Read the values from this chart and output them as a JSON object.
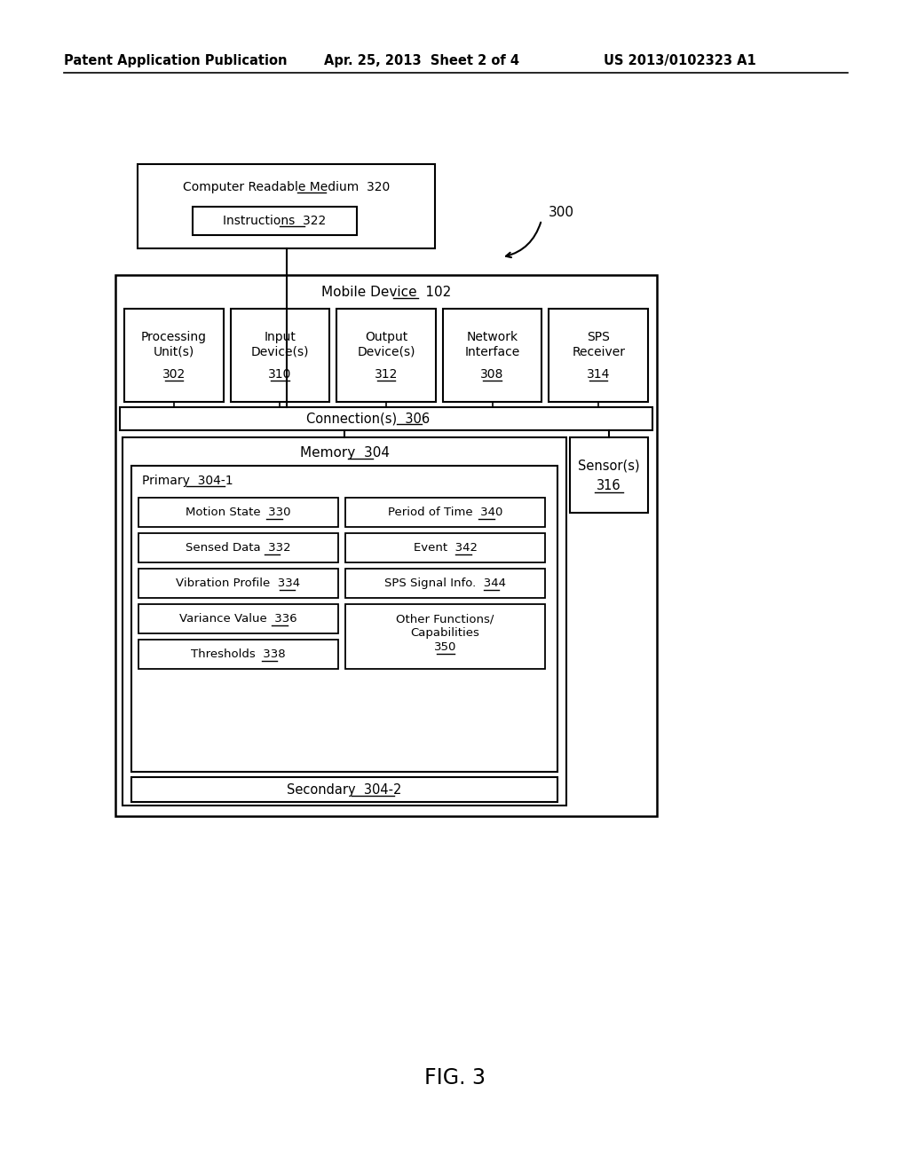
{
  "bg_color": "#ffffff",
  "header_left": "Patent Application Publication",
  "header_mid": "Apr. 25, 2013  Sheet 2 of 4",
  "header_right": "US 2013/0102323 A1",
  "fig_label": "FIG. 3",
  "ref_300": "300",
  "crm_label": "Computer Readable Medium",
  "crm_num": "320",
  "instr_label": "Instructions",
  "instr_num": "322",
  "md_label": "Mobile Device",
  "md_num": "102",
  "conn_label": "Connection(s)",
  "conn_num": "306",
  "mem_label": "Memory",
  "mem_num": "304",
  "primary_label": "Primary",
  "primary_num": "304-1",
  "secondary_label": "Secondary",
  "secondary_num": "304-2",
  "sensor_label": "Sensor(s)",
  "sensor_num": "316",
  "pu_label": "Processing\nUnit(s)",
  "pu_num": "302",
  "id_label": "Input\nDevice(s)",
  "id_num": "310",
  "od_label": "Output\nDevice(s)",
  "od_num": "312",
  "ni_label": "Network\nInterface",
  "ni_num": "308",
  "sps_label": "SPS\nReceiver",
  "sps_num": "314",
  "ms_label": "Motion State",
  "ms_num": "330",
  "sd_label": "Sensed Data",
  "sd_num": "332",
  "vp_label": "Vibration Profile",
  "vp_num": "334",
  "vv_label": "Variance Value",
  "vv_num": "336",
  "th_label": "Thresholds",
  "th_num": "338",
  "pt_label": "Period of Time",
  "pt_num": "340",
  "ev_label": "Event",
  "ev_num": "342",
  "sps_sig_label": "SPS Signal Info.",
  "sps_sig_num": "344",
  "of_label": "Other Functions/\nCapabilities",
  "of_num": "350"
}
